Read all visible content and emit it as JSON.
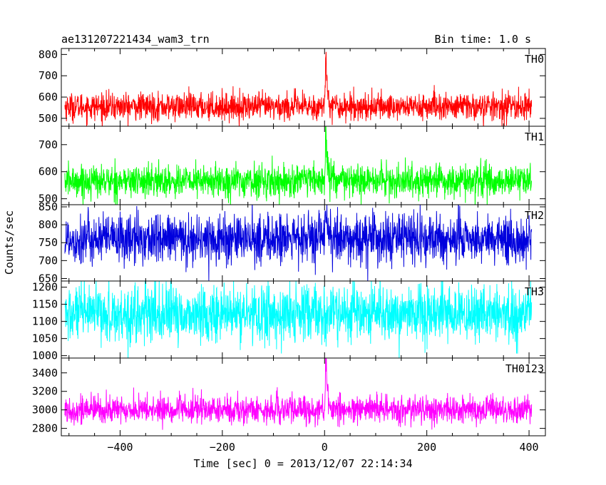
{
  "figure": {
    "title": "ae131207221434_wam3_trn",
    "bin_time": "Bin time: 1.0 s",
    "xlabel": "Time [sec] 0 = 2013/12/07 22:14:34",
    "ylabel": "Counts/sec",
    "x_ticks": [
      "−400",
      "−200",
      "0",
      "200",
      "400"
    ]
  },
  "chart_data": [
    {
      "type": "line",
      "series_label": "TH0",
      "color": "#ff0000",
      "x_range": [
        -508,
        405
      ],
      "xlim": [
        -515,
        432
      ],
      "ylim": [
        463,
        828
      ],
      "y_ticks": [
        500,
        600,
        700,
        800
      ],
      "baseline": 555,
      "noise_sd": 32,
      "burst": {
        "t": 2,
        "peak": 835
      }
    },
    {
      "type": "line",
      "series_label": "TH1",
      "color": "#00ff00",
      "x_range": [
        -508,
        405
      ],
      "xlim": [
        -515,
        432
      ],
      "ylim": [
        478,
        768
      ],
      "y_ticks": [
        500,
        600,
        700
      ],
      "baseline": 565,
      "noise_sd": 30,
      "burst": {
        "t": 2,
        "peak": 770
      }
    },
    {
      "type": "line",
      "series_label": "TH2",
      "color": "#0000dd",
      "x_range": [
        -508,
        405
      ],
      "xlim": [
        -515,
        432
      ],
      "ylim": [
        643,
        856
      ],
      "y_ticks": [
        650,
        700,
        750,
        800,
        850
      ],
      "baseline": 760,
      "noise_sd": 35,
      "burst": {
        "t": 2,
        "peak": 855
      }
    },
    {
      "type": "line",
      "series_label": "TH3",
      "color": "#00ffff",
      "x_range": [
        -508,
        405
      ],
      "xlim": [
        -515,
        432
      ],
      "ylim": [
        993,
        1218
      ],
      "y_ticks": [
        1000,
        1050,
        1100,
        1150,
        1200
      ],
      "baseline": 1120,
      "noise_sd": 42,
      "burst": null
    },
    {
      "type": "line",
      "series_label": "TH0123",
      "color": "#ff00ff",
      "x_range": [
        -508,
        405
      ],
      "xlim": [
        -515,
        432
      ],
      "ylim": [
        2720,
        3560
      ],
      "y_ticks": [
        2800,
        3000,
        3200,
        3400
      ],
      "baseline": 3000,
      "noise_sd": 75,
      "burst": {
        "t": 2,
        "peak": 3580
      }
    }
  ]
}
